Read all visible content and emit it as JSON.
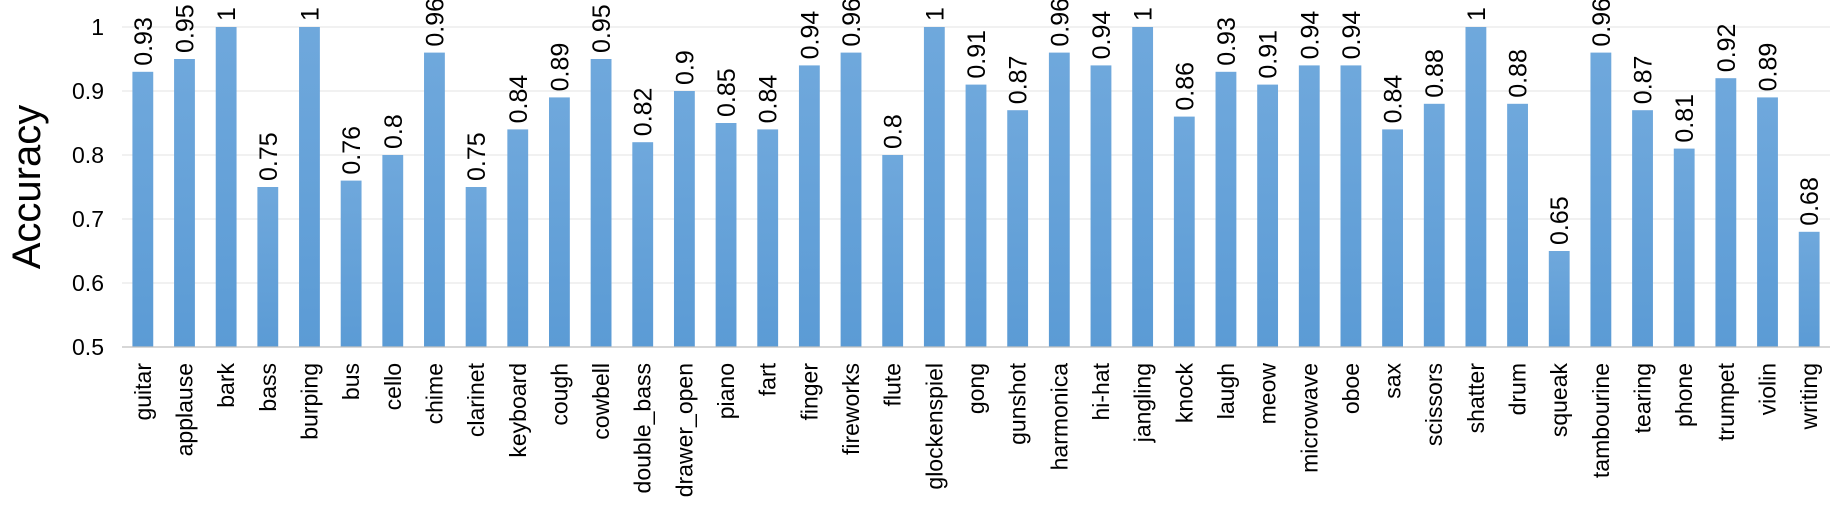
{
  "chart_data": {
    "type": "bar",
    "title": "",
    "xlabel": "",
    "ylabel": "Accuracy",
    "ylim": [
      0.5,
      1
    ],
    "yticks": [
      "0.5",
      "0.6",
      "0.7",
      "0.8",
      "0.9",
      "1"
    ],
    "grid": true,
    "bar_color": "#5b9bd5",
    "categories": [
      "guitar",
      "applause",
      "bark",
      "bass",
      "burping",
      "bus",
      "cello",
      "chime",
      "clarinet",
      "keyboard",
      "cough",
      "cowbell",
      "double_bass",
      "drawer_open",
      "piano",
      "fart",
      "finger",
      "fireworks",
      "flute",
      "glockenspiel",
      "gong",
      "gunshot",
      "harmonica",
      "hi-hat",
      "jangling",
      "knock",
      "laugh",
      "meow",
      "microwave",
      "oboe",
      "sax",
      "scissors",
      "shatter",
      "drum",
      "squeak",
      "tambourine",
      "tearing",
      "phone",
      "trumpet",
      "violin",
      "writing"
    ],
    "values": [
      0.93,
      0.95,
      1,
      0.75,
      1,
      0.76,
      0.8,
      0.96,
      0.75,
      0.84,
      0.89,
      0.95,
      0.82,
      0.9,
      0.85,
      0.84,
      0.94,
      0.96,
      0.8,
      1,
      0.91,
      0.87,
      0.96,
      0.94,
      1,
      0.86,
      0.93,
      0.91,
      0.94,
      0.94,
      0.84,
      0.88,
      1,
      0.88,
      0.65,
      0.96,
      0.87,
      0.81,
      0.92,
      0.89,
      0.68
    ],
    "data_labels": [
      "0.93",
      "0.95",
      "1",
      "0.75",
      "1",
      "0.76",
      "0.8",
      "0.96",
      "0.75",
      "0.84",
      "0.89",
      "0.95",
      "0.82",
      "0.9",
      "0.85",
      "0.84",
      "0.94",
      "0.96",
      "0.8",
      "1",
      "0.91",
      "0.87",
      "0.96",
      "0.94",
      "1",
      "0.86",
      "0.93",
      "0.91",
      "0.94",
      "0.94",
      "0.84",
      "0.88",
      "1",
      "0.88",
      "0.65",
      "0.96",
      "0.87",
      "0.81",
      "0.92",
      "0.89",
      "0.68"
    ]
  }
}
